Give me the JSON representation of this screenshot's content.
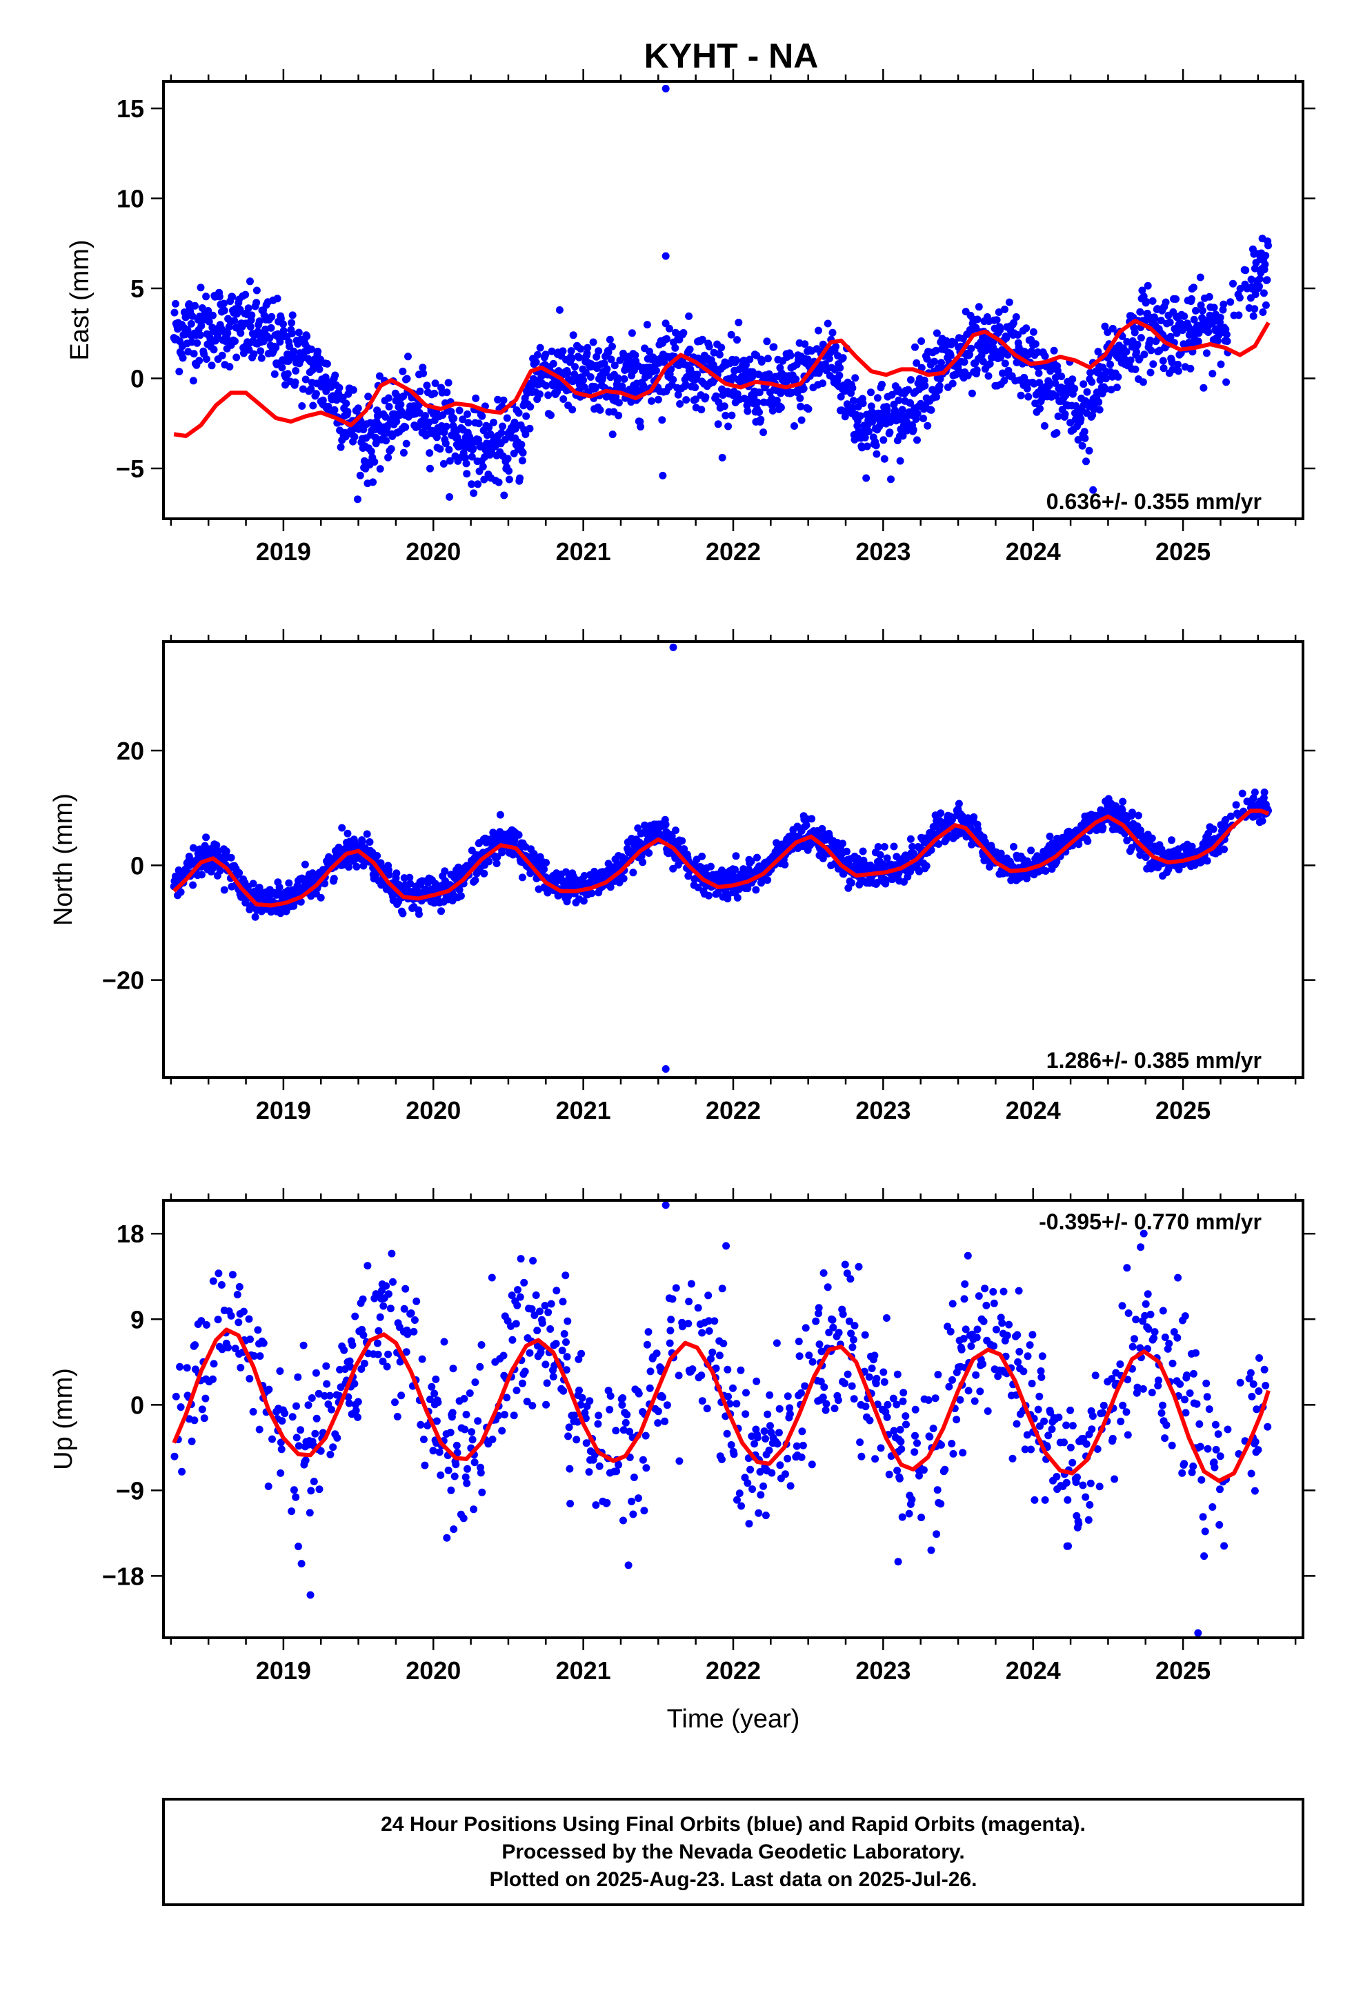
{
  "title": "KYHT - NA",
  "colors": {
    "final_orbits": "#0000ff",
    "model_fit": "#ff0000",
    "frame": "#000000"
  },
  "chart_data": [
    {
      "type": "scatter",
      "component": "east",
      "ylabel": "East (mm)",
      "xlim": [
        2018.2,
        2025.8
      ],
      "ylim": [
        -7.8,
        16.5
      ],
      "yticks": [
        -5,
        0,
        5,
        10,
        15
      ],
      "ytick_labels": [
        "−5",
        "0",
        "5",
        "10",
        "15"
      ],
      "xticks": [
        2019,
        2020,
        2021,
        2022,
        2023,
        2024,
        2025
      ],
      "xtick_labels": [
        "2019",
        "2020",
        "2021",
        "2022",
        "2023",
        "2024",
        "2025"
      ],
      "rate_text": "0.636+/- 0.355 mm/yr",
      "trend_segments": [
        {
          "x": 2018.27,
          "y": 2.6
        },
        {
          "x": 2018.6,
          "y": 3.0
        },
        {
          "x": 2018.9,
          "y": 2.4
        },
        {
          "x": 2019.1,
          "y": 1.2
        },
        {
          "x": 2019.35,
          "y": -1.0
        },
        {
          "x": 2019.55,
          "y": -3.6
        },
        {
          "x": 2019.75,
          "y": -2.0
        },
        {
          "x": 2019.95,
          "y": -1.6
        },
        {
          "x": 2020.15,
          "y": -3.2
        },
        {
          "x": 2020.4,
          "y": -3.8
        },
        {
          "x": 2020.58,
          "y": -3.5
        },
        {
          "x": 2020.68,
          "y": 0.4
        },
        {
          "x": 2021.0,
          "y": 0.0
        },
        {
          "x": 2021.3,
          "y": -0.3
        },
        {
          "x": 2021.6,
          "y": 1.2
        },
        {
          "x": 2021.85,
          "y": 0.3
        },
        {
          "x": 2022.1,
          "y": -0.6
        },
        {
          "x": 2022.4,
          "y": -0.4
        },
        {
          "x": 2022.65,
          "y": 1.3
        },
        {
          "x": 2022.85,
          "y": -2.4
        },
        {
          "x": 2023.1,
          "y": -2.4
        },
        {
          "x": 2023.3,
          "y": 0.3
        },
        {
          "x": 2023.6,
          "y": 1.3
        },
        {
          "x": 2023.85,
          "y": 1.8
        },
        {
          "x": 2024.1,
          "y": -0.4
        },
        {
          "x": 2024.35,
          "y": -2.2
        },
        {
          "x": 2024.5,
          "y": 0.8
        },
        {
          "x": 2024.75,
          "y": 2.8
        },
        {
          "x": 2025.0,
          "y": 2.5
        },
        {
          "x": 2025.25,
          "y": 3.0
        },
        {
          "x": 2025.4,
          "y": 4.0
        },
        {
          "x": 2025.57,
          "y": 6.5
        }
      ],
      "outliers": [
        [
          2021.55,
          16.1
        ],
        [
          2021.55,
          6.8
        ],
        [
          2021.53,
          -5.4
        ],
        [
          2024.4,
          -6.2
        ]
      ],
      "model": [
        [
          2018.27,
          -3.1
        ],
        [
          2018.35,
          -3.2
        ],
        [
          2018.45,
          -2.6
        ],
        [
          2018.55,
          -1.5
        ],
        [
          2018.65,
          -0.8
        ],
        [
          2018.75,
          -0.8
        ],
        [
          2018.85,
          -1.5
        ],
        [
          2018.95,
          -2.2
        ],
        [
          2019.05,
          -2.4
        ],
        [
          2019.15,
          -2.1
        ],
        [
          2019.25,
          -1.9
        ],
        [
          2019.35,
          -2.2
        ],
        [
          2019.45,
          -2.6
        ],
        [
          2019.55,
          -1.8
        ],
        [
          2019.65,
          -0.4
        ],
        [
          2019.72,
          -0.1
        ],
        [
          2019.85,
          -0.7
        ],
        [
          2019.95,
          -1.5
        ],
        [
          2020.05,
          -1.7
        ],
        [
          2020.15,
          -1.4
        ],
        [
          2020.25,
          -1.5
        ],
        [
          2020.35,
          -1.8
        ],
        [
          2020.45,
          -1.9
        ],
        [
          2020.55,
          -1.2
        ],
        [
          2020.65,
          0.4
        ],
        [
          2020.72,
          0.6
        ],
        [
          2020.85,
          0.0
        ],
        [
          2020.95,
          -0.8
        ],
        [
          2021.05,
          -1.0
        ],
        [
          2021.15,
          -0.7
        ],
        [
          2021.25,
          -0.8
        ],
        [
          2021.35,
          -1.1
        ],
        [
          2021.45,
          -0.7
        ],
        [
          2021.55,
          0.6
        ],
        [
          2021.65,
          1.3
        ],
        [
          2021.75,
          0.9
        ],
        [
          2021.85,
          0.3
        ],
        [
          2021.95,
          -0.3
        ],
        [
          2022.05,
          -0.5
        ],
        [
          2022.15,
          -0.2
        ],
        [
          2022.25,
          -0.3
        ],
        [
          2022.35,
          -0.5
        ],
        [
          2022.45,
          -0.3
        ],
        [
          2022.55,
          0.8
        ],
        [
          2022.65,
          2.0
        ],
        [
          2022.72,
          2.1
        ],
        [
          2022.82,
          1.2
        ],
        [
          2022.92,
          0.4
        ],
        [
          2023.02,
          0.2
        ],
        [
          2023.12,
          0.5
        ],
        [
          2023.2,
          0.5
        ],
        [
          2023.3,
          0.2
        ],
        [
          2023.4,
          0.3
        ],
        [
          2023.5,
          1.2
        ],
        [
          2023.6,
          2.4
        ],
        [
          2023.68,
          2.6
        ],
        [
          2023.78,
          2.1
        ],
        [
          2023.88,
          1.3
        ],
        [
          2023.98,
          0.8
        ],
        [
          2024.08,
          0.9
        ],
        [
          2024.18,
          1.2
        ],
        [
          2024.28,
          1.0
        ],
        [
          2024.38,
          0.6
        ],
        [
          2024.48,
          1.3
        ],
        [
          2024.58,
          2.6
        ],
        [
          2024.68,
          3.2
        ],
        [
          2024.78,
          2.8
        ],
        [
          2024.88,
          2.0
        ],
        [
          2024.98,
          1.6
        ],
        [
          2025.08,
          1.7
        ],
        [
          2025.18,
          1.9
        ],
        [
          2025.28,
          1.7
        ],
        [
          2025.38,
          1.3
        ],
        [
          2025.48,
          1.8
        ],
        [
          2025.57,
          3.1
        ]
      ]
    },
    {
      "type": "scatter",
      "component": "north",
      "ylabel": "North (mm)",
      "xlim": [
        2018.2,
        2025.8
      ],
      "ylim": [
        -37,
        39
      ],
      "yticks": [
        -20,
        0,
        20
      ],
      "ytick_labels": [
        "−20",
        "0",
        "20"
      ],
      "xticks": [
        2019,
        2020,
        2021,
        2022,
        2023,
        2024,
        2025
      ],
      "xtick_labels": [
        "2019",
        "2020",
        "2021",
        "2022",
        "2023",
        "2024",
        "2025"
      ],
      "rate_text": "1.286+/- 0.385 mm/yr",
      "outliers": [
        [
          2021.6,
          38.0
        ],
        [
          2021.55,
          -35.5
        ]
      ],
      "model": [
        [
          2018.27,
          -4.5
        ],
        [
          2018.35,
          -2.5
        ],
        [
          2018.45,
          0.5
        ],
        [
          2018.53,
          1.2
        ],
        [
          2018.62,
          -0.5
        ],
        [
          2018.72,
          -4.0
        ],
        [
          2018.82,
          -6.8
        ],
        [
          2018.92,
          -7.0
        ],
        [
          2019.02,
          -6.5
        ],
        [
          2019.12,
          -5.5
        ],
        [
          2019.22,
          -3.5
        ],
        [
          2019.32,
          -0.5
        ],
        [
          2019.42,
          2.0
        ],
        [
          2019.5,
          2.5
        ],
        [
          2019.6,
          0.5
        ],
        [
          2019.7,
          -3.0
        ],
        [
          2019.8,
          -5.5
        ],
        [
          2019.9,
          -5.8
        ],
        [
          2020.0,
          -5.2
        ],
        [
          2020.1,
          -4.5
        ],
        [
          2020.2,
          -2.5
        ],
        [
          2020.32,
          1.0
        ],
        [
          2020.45,
          3.5
        ],
        [
          2020.55,
          3.0
        ],
        [
          2020.65,
          0.0
        ],
        [
          2020.75,
          -3.0
        ],
        [
          2020.85,
          -4.5
        ],
        [
          2020.95,
          -4.5
        ],
        [
          2021.05,
          -4.0
        ],
        [
          2021.15,
          -3.0
        ],
        [
          2021.25,
          -1.0
        ],
        [
          2021.38,
          2.5
        ],
        [
          2021.5,
          4.5
        ],
        [
          2021.6,
          3.0
        ],
        [
          2021.7,
          0.0
        ],
        [
          2021.8,
          -2.5
        ],
        [
          2021.9,
          -3.8
        ],
        [
          2022.0,
          -3.5
        ],
        [
          2022.1,
          -2.8
        ],
        [
          2022.2,
          -1.5
        ],
        [
          2022.3,
          1.0
        ],
        [
          2022.42,
          4.0
        ],
        [
          2022.52,
          5.0
        ],
        [
          2022.62,
          3.0
        ],
        [
          2022.72,
          0.0
        ],
        [
          2022.82,
          -1.8
        ],
        [
          2022.92,
          -1.5
        ],
        [
          2023.02,
          -1.2
        ],
        [
          2023.12,
          -0.5
        ],
        [
          2023.22,
          1.0
        ],
        [
          2023.35,
          4.5
        ],
        [
          2023.48,
          7.0
        ],
        [
          2023.55,
          6.5
        ],
        [
          2023.65,
          3.5
        ],
        [
          2023.75,
          0.5
        ],
        [
          2023.85,
          -1.0
        ],
        [
          2023.95,
          -0.8
        ],
        [
          2024.05,
          0.0
        ],
        [
          2024.15,
          1.5
        ],
        [
          2024.28,
          4.5
        ],
        [
          2024.42,
          7.5
        ],
        [
          2024.5,
          8.5
        ],
        [
          2024.6,
          7.0
        ],
        [
          2024.7,
          4.0
        ],
        [
          2024.8,
          1.5
        ],
        [
          2024.9,
          0.5
        ],
        [
          2025.0,
          0.8
        ],
        [
          2025.1,
          1.5
        ],
        [
          2025.2,
          3.0
        ],
        [
          2025.32,
          6.5
        ],
        [
          2025.45,
          9.5
        ],
        [
          2025.52,
          9.5
        ],
        [
          2025.57,
          9.0
        ]
      ]
    },
    {
      "type": "scatter",
      "component": "up",
      "ylabel": "Up (mm)",
      "xlabel": "Time (year)",
      "xlim": [
        2018.2,
        2025.8
      ],
      "ylim": [
        -24.5,
        21.5
      ],
      "yticks": [
        -18,
        -9,
        0,
        9,
        18
      ],
      "ytick_labels": [
        "−18",
        "−9",
        "0",
        "9",
        "18"
      ],
      "xticks": [
        2019,
        2020,
        2021,
        2022,
        2023,
        2024,
        2025
      ],
      "xtick_labels": [
        "2019",
        "2020",
        "2021",
        "2022",
        "2023",
        "2024",
        "2025"
      ],
      "rate_text": "-0.395+/- 0.770 mm/yr",
      "outliers": [
        [
          2021.55,
          21.0
        ],
        [
          2025.1,
          -24.0
        ],
        [
          2019.18,
          -20.0
        ],
        [
          2023.1,
          -16.5
        ]
      ],
      "model": [
        [
          2018.27,
          -4.0
        ],
        [
          2018.35,
          -1.0
        ],
        [
          2018.45,
          3.5
        ],
        [
          2018.55,
          6.8
        ],
        [
          2018.62,
          7.9
        ],
        [
          2018.7,
          7.3
        ],
        [
          2018.8,
          4.0
        ],
        [
          2018.9,
          -0.5
        ],
        [
          2019.0,
          -3.5
        ],
        [
          2019.1,
          -5.2
        ],
        [
          2019.18,
          -5.3
        ],
        [
          2019.28,
          -3.5
        ],
        [
          2019.38,
          0.0
        ],
        [
          2019.48,
          4.0
        ],
        [
          2019.58,
          6.8
        ],
        [
          2019.67,
          7.4
        ],
        [
          2019.75,
          6.5
        ],
        [
          2019.85,
          3.5
        ],
        [
          2019.95,
          -0.5
        ],
        [
          2020.05,
          -4.0
        ],
        [
          2020.15,
          -5.6
        ],
        [
          2020.22,
          -5.7
        ],
        [
          2020.32,
          -4.0
        ],
        [
          2020.42,
          -0.5
        ],
        [
          2020.52,
          3.5
        ],
        [
          2020.62,
          6.2
        ],
        [
          2020.7,
          6.8
        ],
        [
          2020.8,
          5.5
        ],
        [
          2020.9,
          2.0
        ],
        [
          2021.0,
          -2.0
        ],
        [
          2021.1,
          -5.0
        ],
        [
          2021.2,
          -5.9
        ],
        [
          2021.28,
          -5.4
        ],
        [
          2021.38,
          -3.0
        ],
        [
          2021.48,
          1.0
        ],
        [
          2021.58,
          4.8
        ],
        [
          2021.68,
          6.5
        ],
        [
          2021.76,
          6.0
        ],
        [
          2021.86,
          3.5
        ],
        [
          2021.96,
          -0.5
        ],
        [
          2022.06,
          -4.0
        ],
        [
          2022.16,
          -6.0
        ],
        [
          2022.24,
          -6.2
        ],
        [
          2022.34,
          -4.5
        ],
        [
          2022.44,
          -1.0
        ],
        [
          2022.54,
          3.0
        ],
        [
          2022.64,
          5.8
        ],
        [
          2022.72,
          6.1
        ],
        [
          2022.82,
          4.5
        ],
        [
          2022.92,
          0.5
        ],
        [
          2023.02,
          -3.5
        ],
        [
          2023.12,
          -6.3
        ],
        [
          2023.2,
          -6.8
        ],
        [
          2023.3,
          -5.5
        ],
        [
          2023.4,
          -2.5
        ],
        [
          2023.5,
          1.5
        ],
        [
          2023.6,
          4.8
        ],
        [
          2023.7,
          5.8
        ],
        [
          2023.78,
          5.3
        ],
        [
          2023.88,
          2.5
        ],
        [
          2023.98,
          -1.5
        ],
        [
          2024.08,
          -5.0
        ],
        [
          2024.18,
          -6.9
        ],
        [
          2024.26,
          -7.2
        ],
        [
          2024.36,
          -5.8
        ],
        [
          2024.46,
          -2.5
        ],
        [
          2024.56,
          1.5
        ],
        [
          2024.66,
          4.8
        ],
        [
          2024.74,
          5.6
        ],
        [
          2024.84,
          4.5
        ],
        [
          2024.94,
          1.0
        ],
        [
          2025.04,
          -3.5
        ],
        [
          2025.14,
          -7.0
        ],
        [
          2025.24,
          -8.0
        ],
        [
          2025.34,
          -7.2
        ],
        [
          2025.44,
          -4.0
        ],
        [
          2025.52,
          -1.0
        ],
        [
          2025.57,
          1.5
        ]
      ]
    }
  ],
  "footer": {
    "line1": "24 Hour Positions Using Final Orbits (blue) and Rapid Orbits (magenta).",
    "line2": "Processed by the Nevada Geodetic Laboratory.",
    "line3": "Plotted on 2025-Aug-23. Last data on 2025-Jul-26."
  }
}
